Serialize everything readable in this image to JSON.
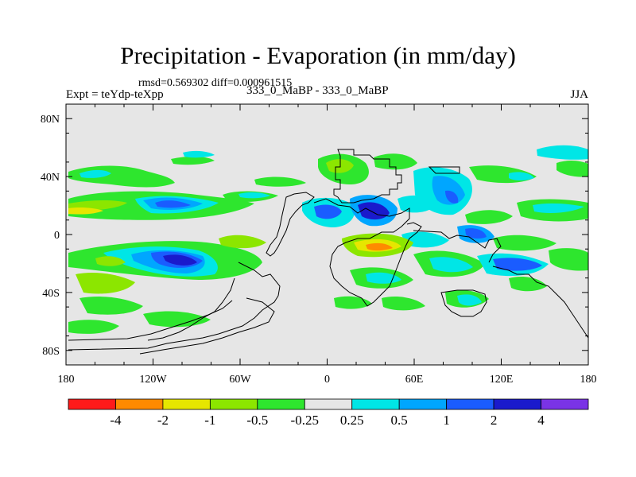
{
  "title": "Precipitation - Evaporation (in mm/day)",
  "stats": {
    "rmsd_label": "rmsd=",
    "rmsd": "0.569302",
    "diff_label": "diff=",
    "diff": "0.000961515"
  },
  "left_label": "Expt = teYdp-teXpp",
  "center_label": "333_0_MaBP - 333_0_MaBP",
  "right_label": "JJA",
  "lat_labels": [
    "80N",
    "40N",
    "0",
    "40S",
    "80S"
  ],
  "lon_labels": [
    "180",
    "120W",
    "60W",
    "0",
    "60E",
    "120E",
    "180"
  ],
  "legend": {
    "labels": [
      "-4",
      "-2",
      "-1",
      "-0.5",
      "-0.25",
      "0.25",
      "0.5",
      "1",
      "2",
      "4"
    ],
    "colors": [
      "#ff1a1a",
      "#ff8a00",
      "#e6e600",
      "#8ce600",
      "#2ee62e",
      "#e6e6e6",
      "#00e6e6",
      "#00a6ff",
      "#1a5cff",
      "#1a1acc",
      "#7a33e6"
    ]
  },
  "colors": {
    "background": "#e6e6e6",
    "coast": "#000000"
  }
}
